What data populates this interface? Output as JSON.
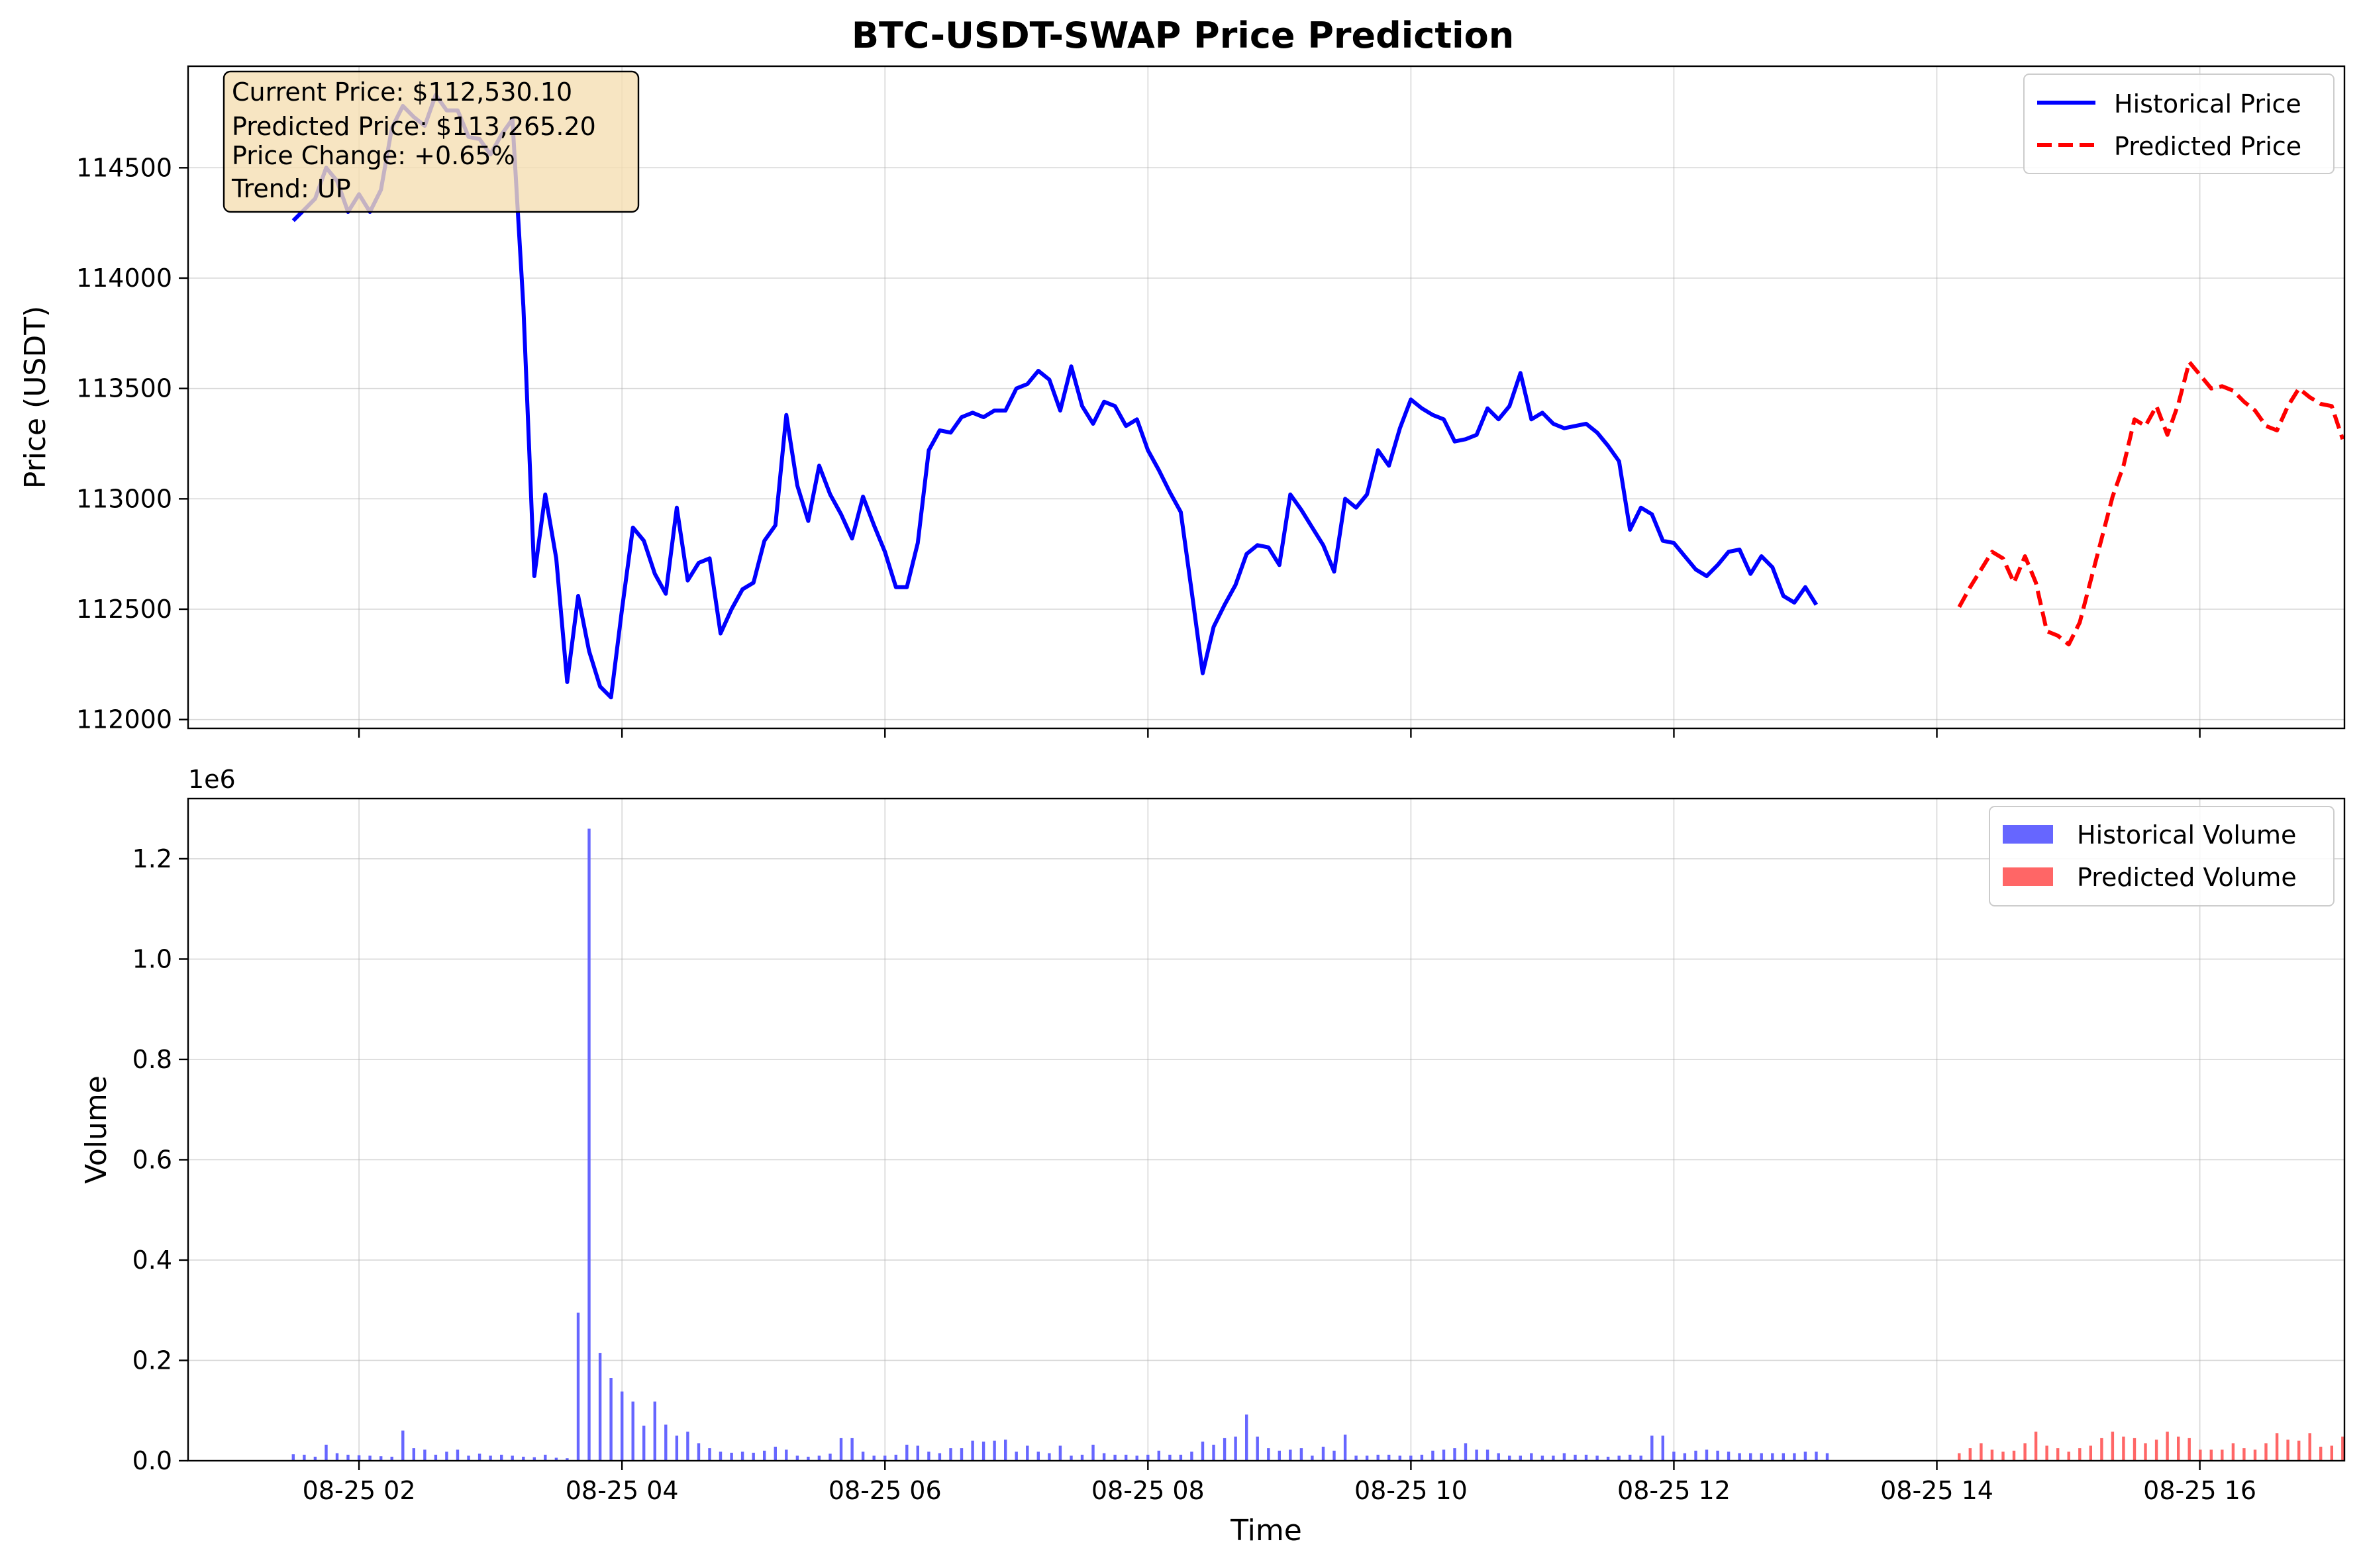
{
  "colors": {
    "historical": "#0000ff",
    "predicted": "#ff0000",
    "historical_volume": "#6666ff",
    "predicted_volume": "#ff6666",
    "info_box_fill": "#f5deb3"
  },
  "info_box": {
    "current_price": "Current Price: $112,530.10",
    "predicted_price": "Predicted Price: $113,265.20",
    "price_change": "Price Change: +0.65%",
    "trend": "Trend: UP"
  },
  "chart_data": [
    {
      "type": "line",
      "title": "BTC-USDT-SWAP Price Prediction",
      "xlabel": "",
      "ylabel": "Price (USDT)",
      "x_unit": "hours",
      "xlim": [
        0.7,
        17.1
      ],
      "ylim": [
        111960,
        114960
      ],
      "yticks": [
        112000,
        112500,
        113000,
        113500,
        114000,
        114500
      ],
      "xticks": [
        {
          "value": 2,
          "label": "08-25 02"
        },
        {
          "value": 4,
          "label": "08-25 04"
        },
        {
          "value": 6,
          "label": "08-25 06"
        },
        {
          "value": 8,
          "label": "08-25 08"
        },
        {
          "value": 10,
          "label": "08-25 10"
        },
        {
          "value": 12,
          "label": "08-25 12"
        },
        {
          "value": 14,
          "label": "08-25 14"
        },
        {
          "value": 16,
          "label": "08-25 16"
        }
      ],
      "grid": true,
      "legend": "top-right",
      "series": [
        {
          "name": "Historical Price",
          "style": "solid",
          "x_start": 1.5,
          "x_step": 0.08333,
          "values": [
            114260,
            114310,
            114360,
            114500,
            114440,
            114300,
            114380,
            114300,
            114400,
            114680,
            114780,
            114730,
            114690,
            114830,
            114760,
            114760,
            114640,
            114630,
            114560,
            114650,
            114720,
            113870,
            112650,
            113020,
            112730,
            112170,
            112560,
            112310,
            112150,
            112100,
            112500,
            112870,
            112810,
            112660,
            112570,
            112960,
            112630,
            112710,
            112730,
            112390,
            112500,
            112590,
            112620,
            112810,
            112880,
            113380,
            113060,
            112900,
            113150,
            113020,
            112930,
            112820,
            113010,
            112880,
            112760,
            112600,
            112600,
            112800,
            113220,
            113310,
            113300,
            113370,
            113390,
            113370,
            113400,
            113400,
            113500,
            113520,
            113580,
            113540,
            113400,
            113600,
            113420,
            113340,
            113440,
            113420,
            113330,
            113360,
            113220,
            113130,
            113030,
            112940,
            112580,
            112210,
            112420,
            112520,
            112610,
            112750,
            112790,
            112780,
            112700,
            113020,
            112950,
            112870,
            112790,
            112670,
            113000,
            112960,
            113020,
            113220,
            113150,
            113320,
            113450,
            113410,
            113380,
            113360,
            113260,
            113270,
            113290,
            113410,
            113360,
            113420,
            113570,
            113360,
            113390,
            113340,
            113320,
            113330,
            113340,
            113300,
            113240,
            113170,
            112860,
            112960,
            112930,
            112810,
            112800,
            112740,
            112680,
            112650,
            112700,
            112760,
            112770,
            112660,
            112740,
            112690,
            112560,
            112530,
            112600,
            112520
          ]
        },
        {
          "name": "Predicted Price",
          "style": "dashed",
          "x_start": 14.17,
          "x_step": 0.08333,
          "values": [
            112510,
            112600,
            112680,
            112760,
            112730,
            112620,
            112740,
            112620,
            112400,
            112380,
            112340,
            112440,
            112630,
            112820,
            113010,
            113150,
            113360,
            113330,
            113420,
            113290,
            113430,
            113620,
            113560,
            113500,
            113510,
            113490,
            113440,
            113400,
            113330,
            113310,
            113420,
            113500,
            113460,
            113430,
            113420,
            113270
          ]
        }
      ]
    },
    {
      "type": "bar",
      "title": "",
      "xlabel": "Time",
      "ylabel": "Volume",
      "y_offset_label": "1e6",
      "x_unit": "hours",
      "xlim": [
        0.7,
        17.1
      ],
      "ylim": [
        0,
        1.32
      ],
      "y_unit": "millions",
      "yticks": [
        0.0,
        0.2,
        0.4,
        0.6,
        0.8,
        1.0,
        1.2
      ],
      "xticks": [
        {
          "value": 2,
          "label": "08-25 02"
        },
        {
          "value": 4,
          "label": "08-25 04"
        },
        {
          "value": 6,
          "label": "08-25 06"
        },
        {
          "value": 8,
          "label": "08-25 08"
        },
        {
          "value": 10,
          "label": "08-25 10"
        },
        {
          "value": 12,
          "label": "08-25 12"
        },
        {
          "value": 14,
          "label": "08-25 14"
        },
        {
          "value": 16,
          "label": "08-25 16"
        }
      ],
      "grid": true,
      "legend": "top-right",
      "series": [
        {
          "name": "Historical Volume",
          "x_start": 1.5,
          "x_step": 0.08333,
          "values": [
            0.013,
            0.012,
            0.008,
            0.032,
            0.015,
            0.012,
            0.011,
            0.01,
            0.009,
            0.008,
            0.06,
            0.025,
            0.022,
            0.012,
            0.018,
            0.022,
            0.01,
            0.014,
            0.01,
            0.012,
            0.01,
            0.008,
            0.007,
            0.012,
            0.006,
            0.005,
            0.295,
            1.26,
            0.215,
            0.165,
            0.138,
            0.118,
            0.07,
            0.118,
            0.072,
            0.05,
            0.058,
            0.035,
            0.025,
            0.018,
            0.016,
            0.018,
            0.016,
            0.02,
            0.028,
            0.022,
            0.01,
            0.008,
            0.01,
            0.014,
            0.045,
            0.045,
            0.018,
            0.01,
            0.01,
            0.012,
            0.032,
            0.03,
            0.018,
            0.015,
            0.025,
            0.025,
            0.04,
            0.038,
            0.04,
            0.042,
            0.018,
            0.03,
            0.018,
            0.015,
            0.03,
            0.01,
            0.012,
            0.032,
            0.015,
            0.012,
            0.012,
            0.01,
            0.012,
            0.02,
            0.012,
            0.012,
            0.018,
            0.038,
            0.032,
            0.045,
            0.048,
            0.092,
            0.048,
            0.025,
            0.02,
            0.022,
            0.025,
            0.01,
            0.028,
            0.02,
            0.052,
            0.01,
            0.01,
            0.012,
            0.012,
            0.01,
            0.01,
            0.012,
            0.02,
            0.022,
            0.025,
            0.035,
            0.022,
            0.022,
            0.015,
            0.01,
            0.01,
            0.015,
            0.01,
            0.01,
            0.015,
            0.012,
            0.012,
            0.01,
            0.008,
            0.01,
            0.012,
            0.01,
            0.05,
            0.05,
            0.018,
            0.015,
            0.02,
            0.022,
            0.02,
            0.018,
            0.015,
            0.015,
            0.015,
            0.015,
            0.015,
            0.015,
            0.018,
            0.018,
            0.015
          ]
        },
        {
          "name": "Predicted Volume",
          "x_start": 14.17,
          "x_step": 0.08333,
          "values": [
            0.015,
            0.025,
            0.035,
            0.022,
            0.018,
            0.02,
            0.035,
            0.058,
            0.03,
            0.025,
            0.018,
            0.025,
            0.03,
            0.045,
            0.058,
            0.048,
            0.045,
            0.035,
            0.042,
            0.058,
            0.048,
            0.045,
            0.022,
            0.022,
            0.022,
            0.035,
            0.025,
            0.022,
            0.035,
            0.055,
            0.042,
            0.04,
            0.055,
            0.028,
            0.03,
            0.048
          ]
        }
      ]
    }
  ]
}
